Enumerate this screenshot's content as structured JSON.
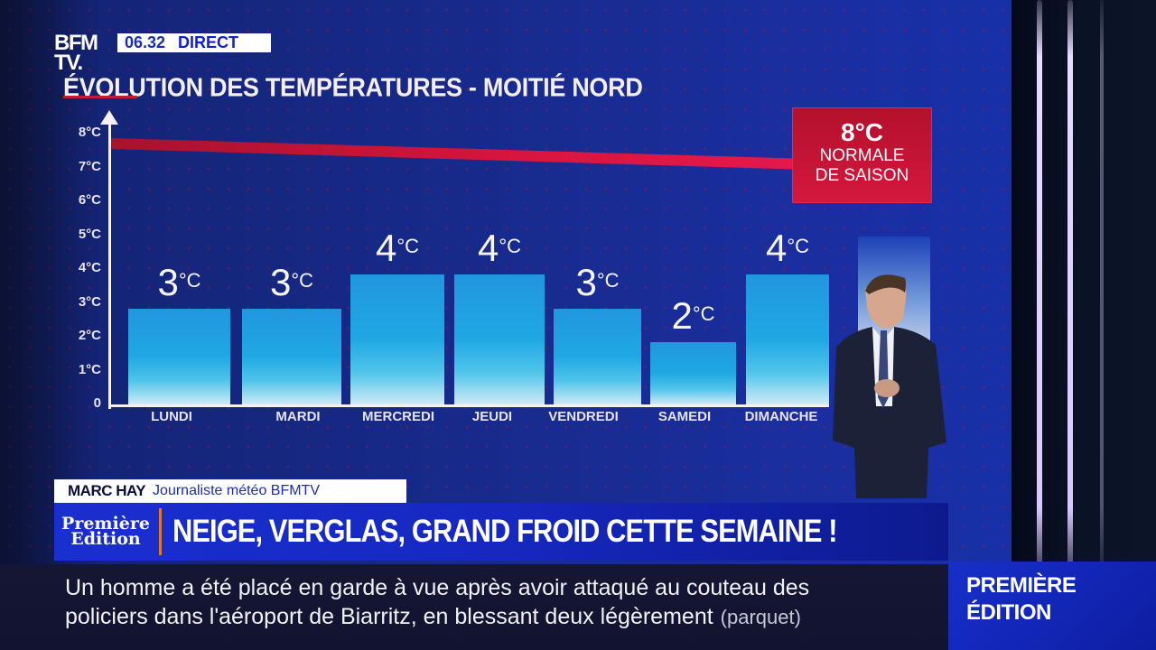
{
  "broadcast": {
    "channel_logo": {
      "line1": "BFM",
      "line2": "TV."
    },
    "clock": "06.32",
    "live_label": "DIRECT"
  },
  "chart_data": {
    "type": "bar",
    "title": "ÉVOLUTION DES TEMPÉRATURES - MOITIÉ NORD",
    "categories": [
      "LUNDI",
      "MARDI",
      "MERCREDI",
      "JEUDI",
      "VENDREDI",
      "SAMEDI",
      "DIMANCHE"
    ],
    "values": [
      3,
      3,
      4,
      4,
      3,
      2,
      4
    ],
    "value_labels": [
      "3",
      "3",
      "4",
      "4",
      "3",
      "2",
      "4"
    ],
    "unit": "°C",
    "xlabel": "",
    "ylabel": "",
    "yticks": [
      "0",
      "1°C",
      "2°C",
      "3°C",
      "4°C",
      "5°C",
      "6°C",
      "7°C",
      "8°C"
    ],
    "ylim": [
      0,
      8
    ],
    "grid": false,
    "reference_line": {
      "value": 8,
      "label_value": "8°C",
      "label_line1": "NORMALE",
      "label_line2": "DE SAISON",
      "color": "#d8153f"
    },
    "bar_color": "#20a8e3"
  },
  "lower_third": {
    "name": "MARC HAY",
    "role": "Journaliste météo BFMTV",
    "show_logo_line1": "Première",
    "show_logo_line2": "Edition",
    "headline": "NEIGE, VERGLAS, GRAND FROID CETTE SEMAINE !"
  },
  "ticker": {
    "line1": "Un homme a été placé en garde à vue après avoir attaqué au couteau des",
    "line2": "policiers dans l'aéroport de Biarritz, en blessant deux légèrement",
    "source": "(parquet)"
  },
  "edition_panel": {
    "line1": "PREMIÈRE",
    "line2": "ÉDITION"
  },
  "colors": {
    "brand_blue": "#1a2fd0",
    "alert_red": "#d4183e",
    "bar_blue": "#20a8e3"
  }
}
